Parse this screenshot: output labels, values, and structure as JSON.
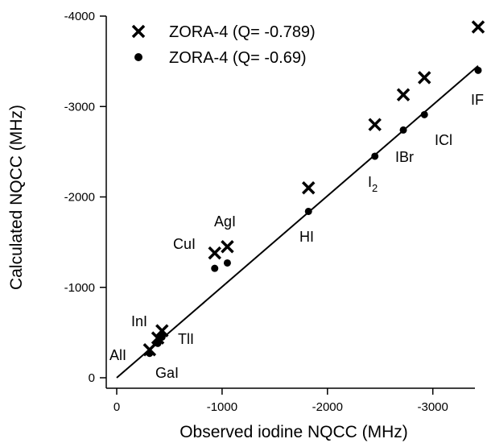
{
  "chart_data": {
    "type": "scatter",
    "title": "",
    "xlabel": "Observed iodine NQCC (MHz)",
    "ylabel": "Calculated NQCC (MHz)",
    "xlim": [
      0,
      -3500
    ],
    "ylim": [
      0,
      -4000
    ],
    "x_ticks": [
      "0",
      "-1000",
      "-2000",
      "-3000"
    ],
    "y_ticks": [
      "0",
      "-1000",
      "-2000",
      "-3000",
      "-4000"
    ],
    "grid": false,
    "legend_position": "top-left",
    "series": [
      {
        "name": "ZORA-4 (Q= -0.789)",
        "marker": "x",
        "points": [
          {
            "x": -312,
            "y": -310
          },
          {
            "x": -390,
            "y": -440
          },
          {
            "x": -430,
            "y": -520
          },
          {
            "x": -930,
            "y": -1380
          },
          {
            "x": -1050,
            "y": -1450
          },
          {
            "x": -1820,
            "y": -2100
          },
          {
            "x": -2450,
            "y": -2800
          },
          {
            "x": -2720,
            "y": -3130
          },
          {
            "x": -2920,
            "y": -3320
          },
          {
            "x": -3430,
            "y": -3880
          }
        ]
      },
      {
        "name": "ZORA-4 (Q= -0.69)",
        "marker": "dot",
        "points": [
          {
            "x": -312,
            "y": -270
          },
          {
            "x": -390,
            "y": -380
          },
          {
            "x": -430,
            "y": -450
          },
          {
            "x": -930,
            "y": -1210
          },
          {
            "x": -1050,
            "y": -1270
          },
          {
            "x": -1820,
            "y": -1840
          },
          {
            "x": -2450,
            "y": -2450
          },
          {
            "x": -2720,
            "y": -2740
          },
          {
            "x": -2920,
            "y": -2910
          },
          {
            "x": -3430,
            "y": -3400
          }
        ]
      }
    ],
    "fit_line": {
      "x": [
        0,
        -3430
      ],
      "y": [
        0,
        -3450
      ]
    },
    "annotations": [
      {
        "text": "AlI",
        "sub": ""
      },
      {
        "text": "InI",
        "sub": ""
      },
      {
        "text": "TlI",
        "sub": ""
      },
      {
        "text": "GaI",
        "sub": ""
      },
      {
        "text": "CuI",
        "sub": ""
      },
      {
        "text": "AgI",
        "sub": ""
      },
      {
        "text": "HI",
        "sub": ""
      },
      {
        "text": "I",
        "sub": "2"
      },
      {
        "text": "IBr",
        "sub": ""
      },
      {
        "text": "ICl",
        "sub": ""
      },
      {
        "text": "IF",
        "sub": ""
      }
    ]
  }
}
